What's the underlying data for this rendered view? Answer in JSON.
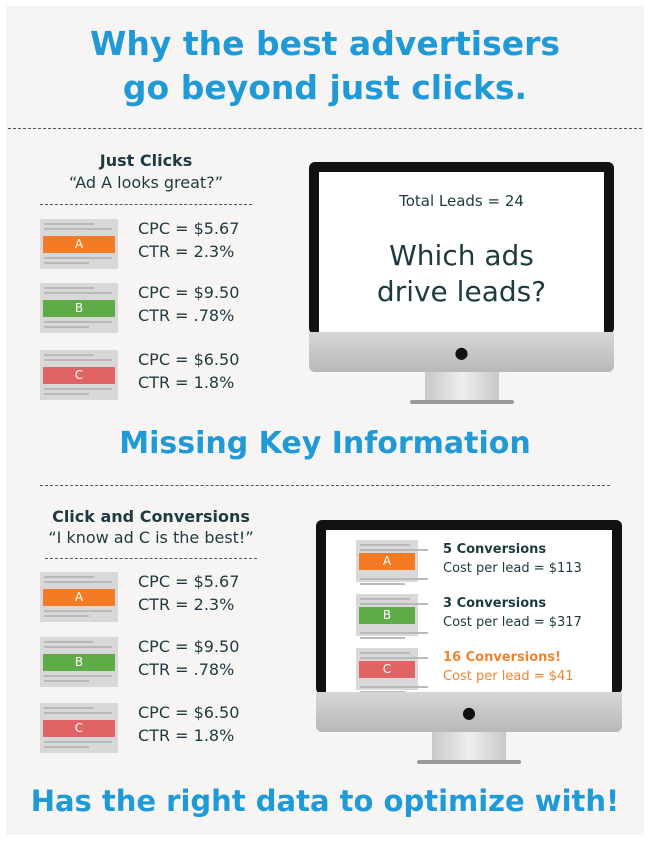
{
  "title": {
    "line1": "Why the best advertisers",
    "line2": "go beyond just clicks."
  },
  "section1": {
    "heading": "Just Clicks",
    "quote": "“Ad A looks great?”",
    "ads": [
      {
        "label": "A",
        "color": "#f47b26",
        "cpc": "CPC = $5.67",
        "ctr": "CTR = 2.3%"
      },
      {
        "label": "B",
        "color": "#5eab47",
        "cpc": "CPC = $9.50",
        "ctr": "CTR = .78%"
      },
      {
        "label": "C",
        "color": "#e06464",
        "cpc": "CPC = $6.50",
        "ctr": "CTR = 1.8%"
      }
    ],
    "monitor": {
      "total": "Total Leads = 24",
      "question": "Which ads drive leads?",
      "logo": "apple-icon"
    }
  },
  "middle_heading": "Missing Key Information",
  "section2": {
    "heading": "Click and Conversions",
    "quote": "“I know ad C is the best!”",
    "ads": [
      {
        "label": "A",
        "color": "#f47b26",
        "cpc": "CPC = $5.67",
        "ctr": "CTR = 2.3%"
      },
      {
        "label": "B",
        "color": "#5eab47",
        "cpc": "CPC = $9.50",
        "ctr": "CTR = .78%"
      },
      {
        "label": "C",
        "color": "#e06464",
        "cpc": "CPC = $6.50",
        "ctr": "CTR = 1.8%"
      }
    ],
    "monitor": {
      "rows": [
        {
          "label": "A",
          "conversions": "5 Conversions",
          "cost": "Cost per lead = $113"
        },
        {
          "label": "B",
          "conversions": "3 Conversions",
          "cost": "Cost per lead  = $317"
        },
        {
          "label": "C",
          "conversions": "16 Conversions!",
          "cost": "Cost per lead  = $41",
          "highlight": "#f0842e"
        }
      ]
    }
  },
  "footer_heading": "Has the right data to optimize with!"
}
